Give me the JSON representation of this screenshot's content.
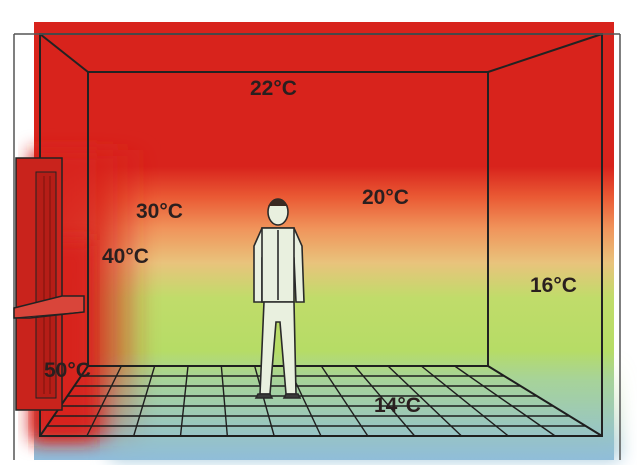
{
  "labels": {
    "ceiling": "22°C",
    "upper_room": "20°C",
    "near_heater_high": "30°C",
    "near_heater_mid": "40°C",
    "heater": "50°C",
    "right_wall": "16°C",
    "floor": "14°C"
  },
  "colors": {
    "hot": "#d8231c",
    "warm": "#f08a55",
    "mild": "#e8c27a",
    "green": "#b6dc66",
    "cool": "#9fcfb8",
    "cold": "#8fbcdc",
    "line": "#222222"
  },
  "icons": {
    "person": "person-figure-icon",
    "heater": "wall-heater-icon"
  }
}
